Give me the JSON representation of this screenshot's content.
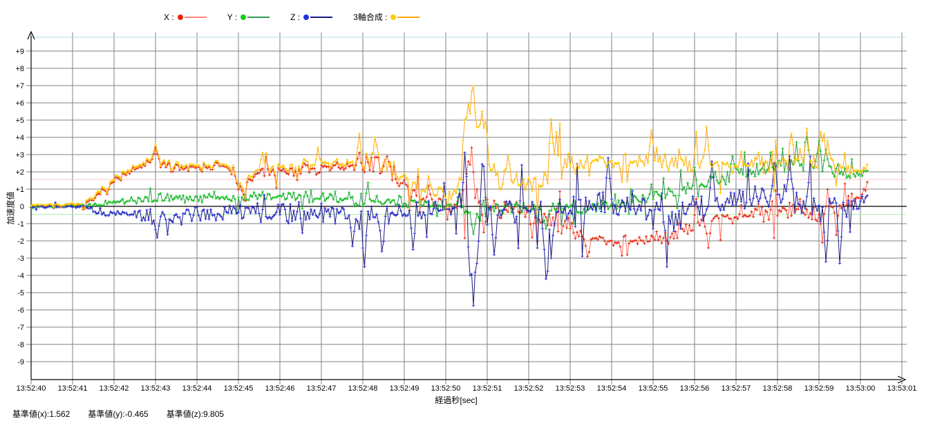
{
  "legend": {
    "items": [
      {
        "name": "x",
        "label": "X :",
        "dot_color": "#ee2200",
        "line_color": "#ff8578"
      },
      {
        "name": "y",
        "label": "Y :",
        "dot_color": "#14cc14",
        "line_color": "#2f9652"
      },
      {
        "name": "z",
        "label": "Z :",
        "dot_color": "#2233dd",
        "line_color": "#17177f"
      },
      {
        "name": "composite",
        "label": "3軸合成 :",
        "dot_color": "#ffcc00",
        "line_color": "#ffa60f"
      }
    ]
  },
  "footer": {
    "labels": [
      "基準値(x):1.562",
      "基準値(y):-0.465",
      "基準値(z):9.805"
    ]
  },
  "chart_data": {
    "type": "line",
    "title": "",
    "xlabel": "経過秒[sec]",
    "ylabel": "加速度値",
    "grid": true,
    "legend_position": "top",
    "x_start_label": "13:52:40",
    "x_tick_labels": [
      "13:52:40",
      "13:52:41",
      "13:52:42",
      "13:52:43",
      "13:52:44",
      "13:52:45",
      "13:52:46",
      "13:52:47",
      "13:52:48",
      "13:52:49",
      "13:52:50",
      "13:52:51",
      "13:52:52",
      "13:52:53",
      "13:52:54",
      "13:52:55",
      "13:52:56",
      "13:52:57",
      "13:52:58",
      "13:52:59",
      "13:53:00",
      "13:53:01"
    ],
    "x_tick_interval_s": 1,
    "ylim": [
      -10.1,
      10.1
    ],
    "y_ticks": [
      {
        "v": 9,
        "label": "+9"
      },
      {
        "v": 8,
        "label": "+8"
      },
      {
        "v": 7,
        "label": "+7"
      },
      {
        "v": 6,
        "label": "+6"
      },
      {
        "v": 5,
        "label": "+5"
      },
      {
        "v": 4,
        "label": "+4"
      },
      {
        "v": 3,
        "label": "+3"
      },
      {
        "v": 2,
        "label": "+2"
      },
      {
        "v": 1,
        "label": "+1"
      },
      {
        "v": 0,
        "label": "0"
      },
      {
        "v": -1,
        "label": "-1"
      },
      {
        "v": -2,
        "label": "-2"
      },
      {
        "v": -3,
        "label": "-3"
      },
      {
        "v": -4,
        "label": "-4"
      },
      {
        "v": -5,
        "label": "-5"
      },
      {
        "v": -6,
        "label": "-6"
      },
      {
        "v": -7,
        "label": "-7"
      },
      {
        "v": -8,
        "label": "-8"
      },
      {
        "v": -9,
        "label": "-9"
      }
    ],
    "baselines": [
      {
        "name": "基準値(x)",
        "value": 1.562,
        "color": "#ffc0cb"
      },
      {
        "name": "基準値(y)",
        "value": -0.465,
        "color": "#a9eda9"
      },
      {
        "name": "基準値(z)",
        "value": 9.805,
        "color": "#b4d9ee"
      }
    ],
    "grid_color": "#7f7f7f",
    "zero_line_color": "#000000",
    "sample_rate_hz": 24,
    "duration_s": 20.2,
    "series": [
      {
        "name": "X",
        "line_color": "#ff6e5f",
        "marker_color": "#e02810",
        "seed": 7,
        "envelope": [
          [
            0,
            0.02,
            0.08
          ],
          [
            1.2,
            0.03,
            0.1
          ],
          [
            1.5,
            0.4,
            0.2
          ],
          [
            2,
            1.5,
            0.3
          ],
          [
            2.5,
            2.1,
            0.25
          ],
          [
            2.9,
            2.6,
            0.35
          ],
          [
            3.1,
            2.6,
            0.4
          ],
          [
            3.3,
            2.25,
            0.3
          ],
          [
            4,
            2.3,
            0.3
          ],
          [
            4.6,
            2.35,
            0.35
          ],
          [
            4.9,
            1.9,
            0.5
          ],
          [
            5.05,
            0.7,
            0.45
          ],
          [
            5.2,
            1.4,
            0.5
          ],
          [
            5.6,
            2,
            0.4
          ],
          [
            6.5,
            2.1,
            0.4
          ],
          [
            7.5,
            2.2,
            0.5
          ],
          [
            8.2,
            2.5,
            0.65
          ],
          [
            8.6,
            2.2,
            0.6
          ],
          [
            9,
            1.2,
            0.6
          ],
          [
            9.4,
            0.5,
            0.45
          ],
          [
            10,
            0.1,
            0.4
          ],
          [
            10.4,
            0.3,
            0.9
          ],
          [
            10.7,
            0.7,
            1.4
          ],
          [
            11,
            0.1,
            1
          ],
          [
            11.5,
            -0.2,
            0.6
          ],
          [
            12,
            -0.4,
            0.7
          ],
          [
            12.6,
            -0.9,
            0.9
          ],
          [
            13,
            -1.3,
            0.8
          ],
          [
            13.5,
            -1.9,
            0.6
          ],
          [
            14.2,
            -2.1,
            0.5
          ],
          [
            15,
            -1.9,
            0.5
          ],
          [
            15.5,
            -1.6,
            0.6
          ],
          [
            16,
            -0.9,
            0.6
          ],
          [
            16.6,
            -0.55,
            0.6
          ],
          [
            17.2,
            -0.4,
            0.6
          ],
          [
            18,
            -0.2,
            0.7
          ],
          [
            18.6,
            -0.1,
            0.8
          ],
          [
            19.2,
            -0.3,
            0.8
          ],
          [
            19.6,
            -0.15,
            0.7
          ],
          [
            19.95,
            0.5,
            0.6
          ],
          [
            20.2,
            1.3,
            0.4
          ]
        ],
        "spikes": [
          [
            3.0,
            3.4
          ],
          [
            7.9,
            3.1
          ],
          [
            8.6,
            2.9
          ],
          [
            10.55,
            2.6
          ],
          [
            10.63,
            3.4
          ],
          [
            10.9,
            -1.5
          ],
          [
            12.1,
            -1.8
          ],
          [
            13.4,
            -2.9
          ],
          [
            16.35,
            -2.4
          ],
          [
            19.1,
            -2.1
          ]
        ]
      },
      {
        "name": "Y",
        "line_color": "#2f9652",
        "marker_color": "#0fc41a",
        "seed": 13,
        "envelope": [
          [
            0,
            0,
            0.07
          ],
          [
            1.3,
            0.02,
            0.1
          ],
          [
            1.7,
            0.12,
            0.18
          ],
          [
            2.2,
            0.3,
            0.22
          ],
          [
            3,
            0.5,
            0.3
          ],
          [
            3.6,
            0.45,
            0.3
          ],
          [
            4.5,
            0.6,
            0.35
          ],
          [
            5,
            0.4,
            0.4
          ],
          [
            5.8,
            0.65,
            0.4
          ],
          [
            6.8,
            0.55,
            0.4
          ],
          [
            7.6,
            0.5,
            0.5
          ],
          [
            8.2,
            0.35,
            0.5
          ],
          [
            9,
            0.2,
            0.4
          ],
          [
            9.6,
            0.1,
            0.3
          ],
          [
            10.2,
            0,
            0.35
          ],
          [
            10.55,
            -0.35,
            0.7
          ],
          [
            10.75,
            -0.4,
            0.8
          ],
          [
            11.1,
            -0.1,
            0.5
          ],
          [
            11.6,
            0,
            0.4
          ],
          [
            12.2,
            -0.15,
            0.45
          ],
          [
            12.8,
            -0.15,
            0.45
          ],
          [
            13.6,
            0,
            0.4
          ],
          [
            14.3,
            0.15,
            0.4
          ],
          [
            15,
            0.55,
            0.5
          ],
          [
            15.6,
            0.9,
            0.5
          ],
          [
            16.1,
            1.3,
            0.5
          ],
          [
            16.7,
            1.65,
            0.5
          ],
          [
            17.3,
            2,
            0.5
          ],
          [
            18.1,
            2.3,
            0.5
          ],
          [
            18.7,
            2.5,
            0.6
          ],
          [
            19.05,
            2.55,
            0.6
          ],
          [
            19.4,
            2.1,
            0.5
          ],
          [
            19.7,
            1.7,
            0.45
          ],
          [
            20,
            1.95,
            0.35
          ],
          [
            20.2,
            2.15,
            0.3
          ]
        ],
        "spikes": [
          [
            10.68,
            -1.6
          ],
          [
            12.4,
            -1.3
          ],
          [
            16.9,
            2.9
          ],
          [
            18.7,
            4.0
          ],
          [
            19.0,
            3.8
          ]
        ]
      },
      {
        "name": "Z",
        "line_color": "#17177f",
        "marker_color": "#2a2ae0",
        "seed": 29,
        "envelope": [
          [
            0,
            0,
            0.09
          ],
          [
            1.2,
            -0.02,
            0.12
          ],
          [
            1.6,
            -0.3,
            0.3
          ],
          [
            2.2,
            -0.5,
            0.35
          ],
          [
            3,
            -0.6,
            0.5
          ],
          [
            3.8,
            -0.5,
            0.55
          ],
          [
            4.6,
            -0.4,
            0.6
          ],
          [
            5.4,
            -0.4,
            0.7
          ],
          [
            6.2,
            -0.35,
            0.75
          ],
          [
            7,
            -0.3,
            0.8
          ],
          [
            7.6,
            -0.4,
            0.9
          ],
          [
            8.1,
            -0.5,
            1
          ],
          [
            8.6,
            -0.55,
            1
          ],
          [
            9.2,
            -0.4,
            0.85
          ],
          [
            9.7,
            -0.2,
            0.7
          ],
          [
            10.1,
            -0.1,
            0.65
          ],
          [
            10.45,
            -0.2,
            1.4
          ],
          [
            10.7,
            -1,
            2.3
          ],
          [
            11,
            -0.35,
            1.4
          ],
          [
            11.6,
            -0.2,
            1
          ],
          [
            12.1,
            -0.25,
            1.2
          ],
          [
            12.5,
            -0.5,
            1.5
          ],
          [
            13,
            -0.25,
            1.3
          ],
          [
            13.8,
            -0.05,
            1.2
          ],
          [
            14.6,
            -0.1,
            1.3
          ],
          [
            15.2,
            -0.25,
            1.4
          ],
          [
            15.8,
            -0.2,
            1.2
          ],
          [
            16.4,
            0.1,
            1.05
          ],
          [
            17,
            0.3,
            1
          ],
          [
            17.8,
            0.45,
            1.05
          ],
          [
            18.4,
            0.45,
            1.15
          ],
          [
            19,
            0.2,
            1.3
          ],
          [
            19.5,
            -0.15,
            1.3
          ],
          [
            19.9,
            0.2,
            0.9
          ],
          [
            20.2,
            0.6,
            0.5
          ]
        ],
        "spikes": [
          [
            3.05,
            -1.8
          ],
          [
            7.75,
            -2.3
          ],
          [
            8.05,
            -3.5
          ],
          [
            8.45,
            -2.6
          ],
          [
            9.2,
            -2.5
          ],
          [
            10.45,
            3.1
          ],
          [
            10.6,
            -4.0
          ],
          [
            10.68,
            -5.75
          ],
          [
            10.77,
            -3.3
          ],
          [
            10.9,
            2.3
          ],
          [
            11.15,
            -2.8
          ],
          [
            12.4,
            -4.2
          ],
          [
            12.55,
            -3.0
          ],
          [
            13.9,
            2.8
          ],
          [
            15.35,
            -3.5
          ],
          [
            16.4,
            2.6
          ],
          [
            17.9,
            2.5
          ],
          [
            18.3,
            2.9
          ],
          [
            19.15,
            -3.2
          ],
          [
            19.5,
            -3.3
          ]
        ]
      },
      {
        "name": "3軸合成",
        "line_color": "#ffa60f",
        "marker_color": "#fdc800",
        "seed": 7,
        "envelope": [
          [
            0,
            0.08,
            0.07
          ],
          [
            1.2,
            0.1,
            0.1
          ],
          [
            1.5,
            0.5,
            0.25
          ],
          [
            2,
            1.6,
            0.3
          ],
          [
            2.5,
            2.2,
            0.25
          ],
          [
            2.9,
            2.7,
            0.35
          ],
          [
            3.1,
            2.7,
            0.4
          ],
          [
            3.3,
            2.4,
            0.3
          ],
          [
            4,
            2.4,
            0.3
          ],
          [
            4.6,
            2.45,
            0.35
          ],
          [
            4.9,
            2,
            0.5
          ],
          [
            5.05,
            0.9,
            0.45
          ],
          [
            5.2,
            1.6,
            0.5
          ],
          [
            5.6,
            2.2,
            0.4
          ],
          [
            6.5,
            2.3,
            0.45
          ],
          [
            7.5,
            2.4,
            0.5
          ],
          [
            8.2,
            2.7,
            0.65
          ],
          [
            8.6,
            2.4,
            0.6
          ],
          [
            9,
            1.6,
            0.55
          ],
          [
            9.4,
            1,
            0.45
          ],
          [
            10,
            0.8,
            0.4
          ],
          [
            10.35,
            1.2,
            0.9
          ],
          [
            10.55,
            3.2,
            1.7
          ],
          [
            10.72,
            4.2,
            2
          ],
          [
            10.95,
            3,
            1.4
          ],
          [
            11.2,
            1.9,
            1
          ],
          [
            11.6,
            1.3,
            0.7
          ],
          [
            12.1,
            1.2,
            0.8
          ],
          [
            12.45,
            1.7,
            1.1
          ],
          [
            12.7,
            2.2,
            1.2
          ],
          [
            13.1,
            2.4,
            0.9
          ],
          [
            13.7,
            2.6,
            0.8
          ],
          [
            14.4,
            2.5,
            0.7
          ],
          [
            15.1,
            2.8,
            0.8
          ],
          [
            15.8,
            2.65,
            0.8
          ],
          [
            16.5,
            2.5,
            0.75
          ],
          [
            17.2,
            2.6,
            0.7
          ],
          [
            18,
            2.6,
            0.75
          ],
          [
            18.6,
            2.8,
            0.8
          ],
          [
            19.1,
            2.85,
            0.75
          ],
          [
            19.4,
            2.4,
            0.6
          ],
          [
            19.7,
            1.9,
            0.5
          ],
          [
            20,
            2.1,
            0.4
          ],
          [
            20.2,
            2.3,
            0.3
          ]
        ],
        "spikes": [
          [
            3.0,
            3.6
          ],
          [
            5.6,
            3.1
          ],
          [
            6.9,
            3.4
          ],
          [
            7.9,
            4.2
          ],
          [
            8.3,
            4.0
          ],
          [
            10.45,
            5.0
          ],
          [
            10.55,
            5.9
          ],
          [
            10.63,
            6.3
          ],
          [
            10.68,
            7.0
          ],
          [
            10.78,
            4.6
          ],
          [
            10.87,
            5.5
          ],
          [
            10.95,
            5.0
          ],
          [
            11.5,
            2.9
          ],
          [
            12.55,
            5.05
          ],
          [
            12.67,
            4.3
          ],
          [
            14.95,
            4.4
          ],
          [
            16.3,
            4.6
          ],
          [
            18.35,
            4.2
          ],
          [
            18.72,
            4.5
          ],
          [
            19.05,
            4.3
          ]
        ]
      }
    ]
  }
}
